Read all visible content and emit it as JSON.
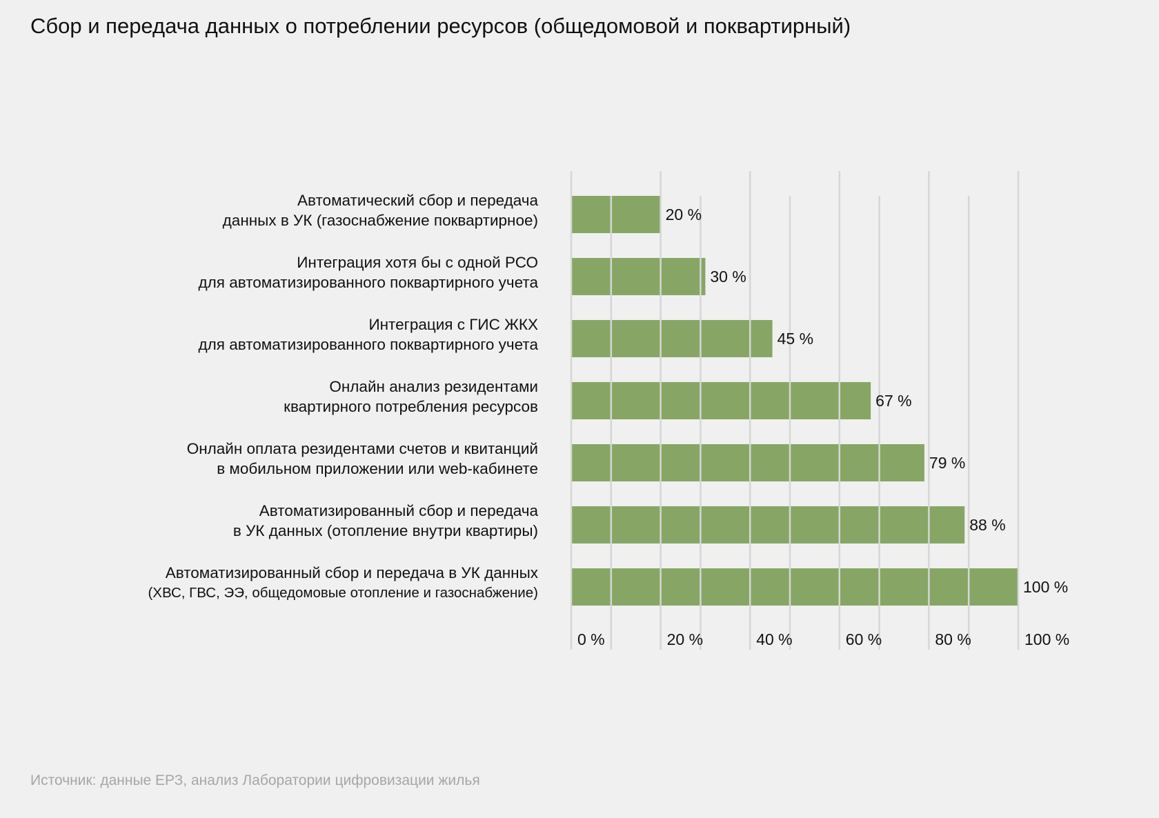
{
  "title": "Сбор и передача данных о потреблении ресурсов (общедомовой и поквартирный)",
  "source": "Источник: данные ЕРЗ, анализ Лаборатории цифровизации жилья",
  "chart_data": {
    "type": "bar",
    "orientation": "horizontal",
    "title": "Сбор и передача данных о потреблении ресурсов (общедомовой и поквартирный)",
    "categories": [
      [
        "Автоматический сбор и передача",
        "данных в УК (газоснабжение поквартирное)"
      ],
      [
        "Интеграция хотя бы с одной РСО",
        "для автоматизированного поквартирного учета"
      ],
      [
        "Интеграция с ГИС ЖКХ",
        "для автоматизированного поквартирного учета"
      ],
      [
        "Онлайн анализ резидентами",
        "квартирного потребления ресурсов"
      ],
      [
        "Онлайн оплата резидентами счетов и квитанций",
        "в мобильном приложении или web-кабинете"
      ],
      [
        "Автоматизированный сбор и передача",
        "в УК данных (отопление внутри квартиры)"
      ],
      [
        "Автоматизированный сбор и передача в УК данных",
        "(ХВС, ГВС, ЭЭ, общедомовые отопление и газоснабжение)"
      ]
    ],
    "values": [
      20,
      30,
      45,
      67,
      79,
      88,
      100
    ],
    "value_labels": [
      "20 %",
      "30 %",
      "45 %",
      "67 %",
      "79 %",
      "88 %",
      "100 %"
    ],
    "xlim": [
      0,
      100
    ],
    "x_ticks": [
      0,
      20,
      40,
      60,
      80,
      100
    ],
    "x_tick_labels": [
      "0 %",
      "20 %",
      "40 %",
      "60 %",
      "80 %",
      "100 %"
    ],
    "xlabel": "",
    "ylabel": "",
    "grid": true,
    "legend": "none",
    "bar_color": "#87a665",
    "grid_color": "#d6d6d6"
  }
}
